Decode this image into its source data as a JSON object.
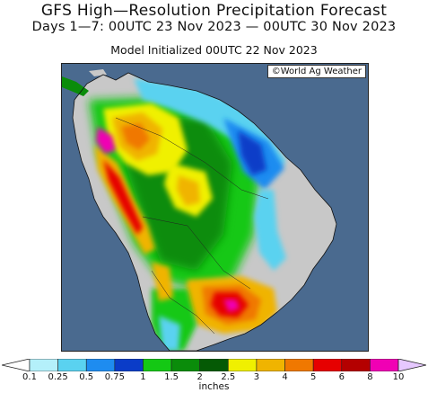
{
  "header": {
    "title": "GFS High—Resolution Precipitation Forecast",
    "period": "Days 1—7: 00UTC 23 Nov 2023 — 00UTC 30 Nov 2023",
    "initialized": "Model Initialized 00UTC 22 Nov 2023"
  },
  "map": {
    "credit": "©World Ag Weather",
    "ocean_color": "#4a6a8f",
    "land_nodata_color": "#c8c8c8"
  },
  "colorbar": {
    "units": "inches",
    "ticks": [
      "0.1",
      "0.25",
      "0.5",
      "0.75",
      "1",
      "1.5",
      "2",
      "2.5",
      "3",
      "4",
      "5",
      "6",
      "8",
      "10"
    ],
    "colors": [
      "#b4f0fa",
      "#5ad2f0",
      "#1e8cf0",
      "#0a3cc8",
      "#14c814",
      "#0a8c0a",
      "#055a05",
      "#f0f000",
      "#f0b400",
      "#f07800",
      "#e60000",
      "#b40000",
      "#f000b4",
      "#c864f0",
      "#e6c8ff"
    ]
  }
}
